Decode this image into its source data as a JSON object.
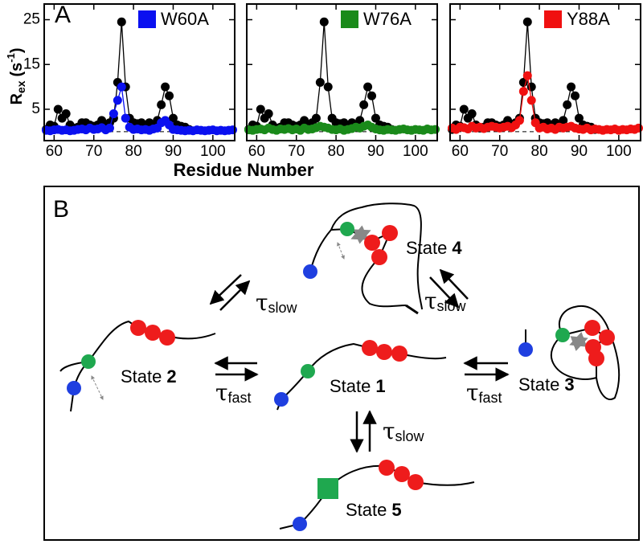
{
  "panel_a": {
    "label": "A",
    "y_label": {
      "symbol": "R",
      "sub": "ex",
      "unit": "(s",
      "sup": "-1",
      "close": ")"
    },
    "x_label": "Residue Number"
  },
  "chart_data": [
    {
      "type": "line",
      "legend": "top-right",
      "zero_line": true,
      "show_ytick_labels": true,
      "x": [
        58,
        59,
        60,
        61,
        62,
        63,
        64,
        65,
        66,
        67,
        68,
        69,
        70,
        71,
        72,
        73,
        74,
        75,
        76,
        77,
        78,
        79,
        80,
        81,
        82,
        83,
        84,
        85,
        86,
        87,
        88,
        89,
        90,
        91,
        92,
        93,
        94,
        95,
        96,
        97,
        98,
        99,
        100,
        101,
        102,
        103,
        104,
        105
      ],
      "xlim": [
        57.5,
        105.5
      ],
      "xticks": [
        60,
        70,
        80,
        90,
        100
      ],
      "ylim": [
        -2,
        28.5
      ],
      "yticks": [
        5,
        15,
        25
      ],
      "series": [
        {
          "color": "#000000",
          "values": [
            0.5,
            1.5,
            1.2,
            5,
            3,
            4,
            1.5,
            0.8,
            1,
            2,
            2,
            1.5,
            1.2,
            1.5,
            2.5,
            1.2,
            2,
            3,
            11,
            24.5,
            10,
            3,
            2,
            1.8,
            2,
            1.5,
            2,
            1.5,
            2.5,
            6,
            10,
            8,
            3,
            1.5,
            1.2,
            1,
            0.5,
            null,
            null,
            null,
            null,
            null,
            null,
            null,
            null,
            null,
            null,
            null
          ]
        },
        {
          "name": "W60A",
          "color": "#0a10f0",
          "values": [
            0.3,
            0.2,
            0.4,
            0.5,
            0.3,
            0.4,
            0.2,
            0.3,
            0.5,
            0.6,
            0.4,
            0.8,
            0.5,
            0.6,
            0.9,
            0.4,
            0.8,
            4,
            7,
            10,
            3,
            1,
            0.5,
            0.6,
            0.4,
            0.5,
            0.3,
            0.6,
            0.8,
            2,
            2.5,
            1.5,
            0.5,
            0.4,
            0.3,
            0.2,
            0.3,
            0.2,
            0.4,
            0.3,
            0.2,
            0.3,
            0.4,
            0.2,
            0.3,
            0.2,
            0.3,
            0.4
          ]
        }
      ]
    },
    {
      "type": "line",
      "legend": "top-right",
      "zero_line": true,
      "show_ytick_labels": false,
      "x": [
        58,
        59,
        60,
        61,
        62,
        63,
        64,
        65,
        66,
        67,
        68,
        69,
        70,
        71,
        72,
        73,
        74,
        75,
        76,
        77,
        78,
        79,
        80,
        81,
        82,
        83,
        84,
        85,
        86,
        87,
        88,
        89,
        90,
        91,
        92,
        93,
        94,
        95,
        96,
        97,
        98,
        99,
        100,
        101,
        102,
        103,
        104,
        105
      ],
      "xlim": [
        57.5,
        105.5
      ],
      "xticks": [
        60,
        70,
        80,
        90,
        100
      ],
      "ylim": [
        -2,
        28.5
      ],
      "yticks": [
        5,
        15,
        25
      ],
      "series": [
        {
          "color": "#000000",
          "values": [
            0.5,
            1.5,
            1.2,
            5,
            3,
            4,
            1.5,
            0.8,
            1,
            2,
            2,
            1.5,
            1.2,
            1.5,
            2.5,
            1.2,
            2,
            3,
            11,
            24.5,
            10,
            3,
            2,
            1.8,
            2,
            1.5,
            2,
            1.5,
            2.5,
            6,
            10,
            8,
            3,
            1.5,
            1.2,
            1,
            0.5,
            null,
            null,
            null,
            null,
            null,
            null,
            null,
            null,
            null,
            null,
            null
          ]
        },
        {
          "name": "W76A",
          "color": "#1a8a1a",
          "values": [
            0.4,
            0.3,
            0.5,
            0.6,
            0.4,
            0.8,
            0.5,
            0.3,
            0.6,
            0.5,
            0.7,
            0.4,
            0.6,
            0.3,
            0.8,
            0.5,
            0.6,
            0.9,
            1.2,
            1,
            0.8,
            0.5,
            0.4,
            0.6,
            0.3,
            0.5,
            0.7,
            1,
            0.8,
            1.2,
            1.5,
            1,
            0.6,
            0.4,
            0.3,
            0.5,
            0.4,
            0.3,
            0.5,
            0.6,
            0.4,
            0.3,
            0.5,
            0.4,
            0.3,
            0.6,
            0.4,
            0.5
          ]
        }
      ]
    },
    {
      "type": "line",
      "legend": "top-right",
      "zero_line": true,
      "show_ytick_labels": false,
      "x": [
        58,
        59,
        60,
        61,
        62,
        63,
        64,
        65,
        66,
        67,
        68,
        69,
        70,
        71,
        72,
        73,
        74,
        75,
        76,
        77,
        78,
        79,
        80,
        81,
        82,
        83,
        84,
        85,
        86,
        87,
        88,
        89,
        90,
        91,
        92,
        93,
        94,
        95,
        96,
        97,
        98,
        99,
        100,
        101,
        102,
        103,
        104,
        105
      ],
      "xlim": [
        57.5,
        105.5
      ],
      "xticks": [
        60,
        70,
        80,
        90,
        100
      ],
      "ylim": [
        -2,
        28.5
      ],
      "yticks": [
        5,
        15,
        25
      ],
      "series": [
        {
          "color": "#000000",
          "values": [
            0.5,
            1.5,
            1.2,
            5,
            3,
            4,
            1.5,
            0.8,
            1,
            2,
            2,
            1.5,
            1.2,
            1.5,
            2.5,
            1.2,
            2,
            3,
            11,
            24.5,
            10,
            3,
            2,
            1.8,
            2,
            1.5,
            2,
            1.5,
            2.5,
            6,
            10,
            8,
            3,
            1.5,
            1.2,
            1,
            0.5,
            null,
            null,
            null,
            null,
            null,
            null,
            null,
            null,
            null,
            null,
            null
          ]
        },
        {
          "name": "Y88A",
          "color": "#f01010",
          "values": [
            0.8,
            0.5,
            1,
            0.9,
            0.6,
            1.2,
            0.8,
            1,
            0.7,
            1,
            1.2,
            1,
            0.8,
            1,
            1.2,
            0.9,
            1.5,
            2.5,
            9,
            12.5,
            7,
            2,
            0.8,
            1,
            0.6,
            0.8,
            0.5,
            1,
            0.8,
            1,
            1.2,
            0.8,
            0.6,
            0.5,
            0.8,
            0.4,
            0.6,
            0.5,
            0.3,
            0.5,
            0.4,
            0.6,
            0.3,
            0.5,
            0.4,
            0.6,
            0.5,
            0.8
          ]
        }
      ]
    }
  ],
  "panel_b": {
    "label": "B",
    "states": [
      {
        "word": "State",
        "number": "1"
      },
      {
        "word": "State",
        "number": "2"
      },
      {
        "word": "State",
        "number": "3"
      },
      {
        "word": "State",
        "number": "4"
      },
      {
        "word": "State",
        "number": "5"
      }
    ],
    "rates": [
      {
        "symbol": "τ",
        "sub": "slow"
      },
      {
        "symbol": "τ",
        "sub": "slow"
      },
      {
        "symbol": "τ",
        "sub": "fast"
      },
      {
        "symbol": "τ",
        "sub": "fast"
      },
      {
        "symbol": "τ",
        "sub": "slow"
      }
    ]
  }
}
